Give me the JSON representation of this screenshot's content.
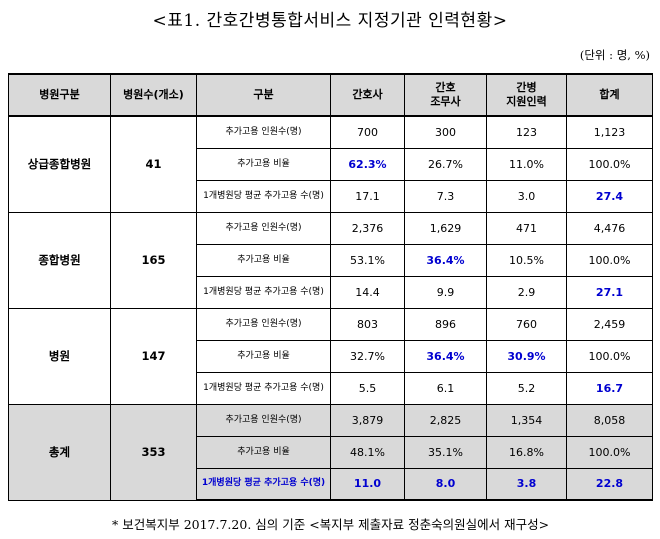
{
  "title": "<표1. 간호간병통합서비스 지정기관 인력현황>",
  "unit": "(단위 : 명, %)",
  "headers": [
    "병원구분",
    "병원수(개소)",
    "구분",
    "간호사",
    "간호\n조무사",
    "간병\n지원인력",
    "합계"
  ],
  "groups": [
    {
      "name": "상급종합병원",
      "count": "41",
      "rows": [
        {
          "label": "추가고용 인원수(명)",
          "values": [
            "700",
            "300",
            "123",
            "1,123"
          ]
        },
        {
          "label": "추가고용 비율",
          "values": [
            "62.3%",
            "26.7%",
            "11.0%",
            "100.0%"
          ]
        },
        {
          "label": "1개병원당 평균 추가고용 수(명)",
          "values": [
            "17.1",
            "7.3",
            "3.0",
            "27.4"
          ]
        }
      ]
    },
    {
      "name": "종합병원",
      "count": "165",
      "rows": [
        {
          "label": "추가고용 인원수(명)",
          "values": [
            "2,376",
            "1,629",
            "471",
            "4,476"
          ]
        },
        {
          "label": "추가고용 비율",
          "values": [
            "53.1%",
            "36.4%",
            "10.5%",
            "100.0%"
          ]
        },
        {
          "label": "1개병원당 평균 추가고용 수(명)",
          "values": [
            "14.4",
            "9.9",
            "2.9",
            "27.1"
          ]
        }
      ]
    },
    {
      "name": "병원",
      "count": "147",
      "rows": [
        {
          "label": "추가고용 인원수(명)",
          "values": [
            "803",
            "896",
            "760",
            "2,459"
          ]
        },
        {
          "label": "추가고용 비율",
          "values": [
            "32.7%",
            "36.4%",
            "30.9%",
            "100.0%"
          ]
        },
        {
          "label": "1개병원당 평균 추가고용 수(명)",
          "values": [
            "5.5",
            "6.1",
            "5.2",
            "16.7"
          ]
        }
      ]
    },
    {
      "name": "총계",
      "count": "353",
      "rows": [
        {
          "label": "추가고용 인원수(명)",
          "values": [
            "3,879",
            "2,825",
            "1,354",
            "8,058"
          ]
        },
        {
          "label": "추가고용 비율",
          "values": [
            "48.1%",
            "35.1%",
            "16.8%",
            "100.0%"
          ]
        },
        {
          "label": "1개병원당 평균 추가고용 수(명)",
          "values": [
            "11.0",
            "8.0",
            "3.8",
            "22.8"
          ]
        }
      ]
    }
  ],
  "highlight_color": "#0000d0",
  "note": "* 보건복지부 2017.7.20. 심의 기준 <복지부 제출자료 정춘숙의원실에서 재구성>"
}
